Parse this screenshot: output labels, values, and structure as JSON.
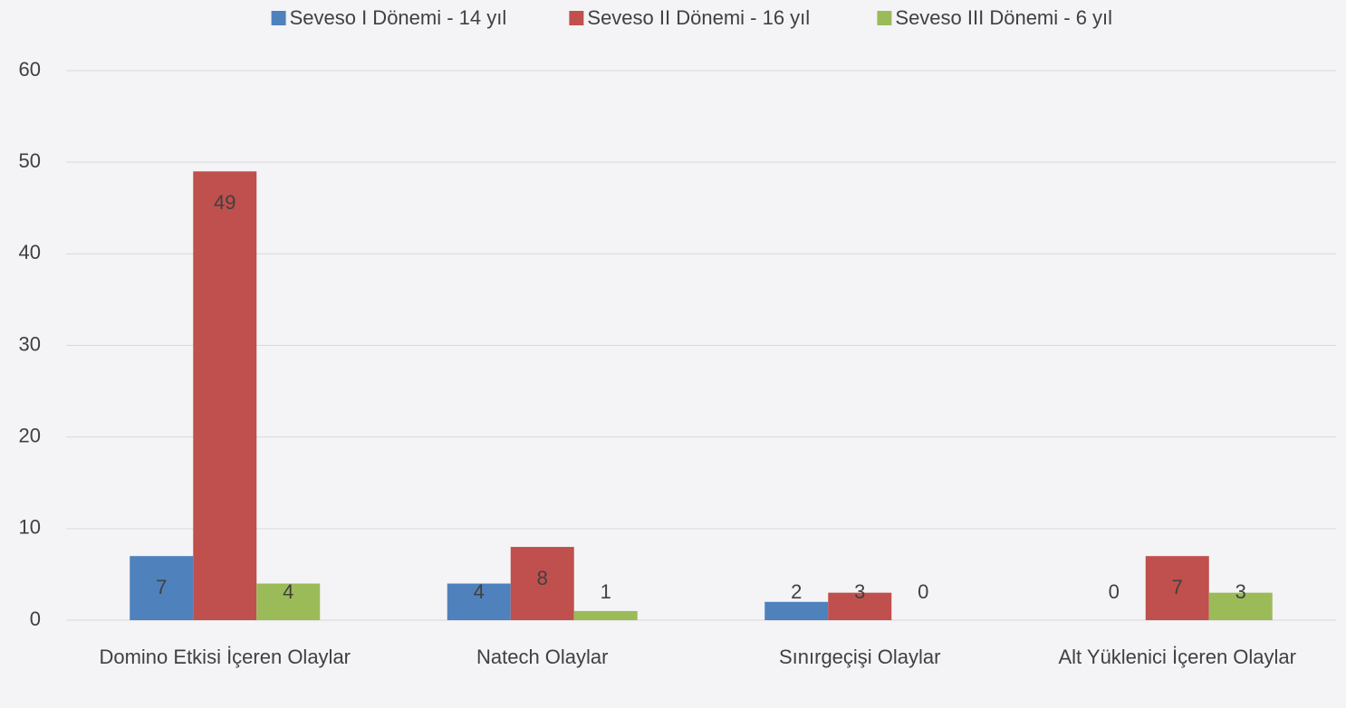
{
  "chart_data": {
    "type": "bar",
    "categories": [
      "Domino Etkisi İçeren Olaylar",
      "Natech Olaylar",
      "Sınırgeçişi Olaylar",
      "Alt Yüklenici İçeren Olaylar"
    ],
    "series": [
      {
        "name": "Seveso I Dönemi - 14 yıl",
        "color": "#4f81bd",
        "values": [
          7,
          4,
          2,
          0
        ]
      },
      {
        "name": "Seveso II Dönemi - 16 yıl",
        "color": "#c0504d",
        "values": [
          49,
          8,
          3,
          7
        ]
      },
      {
        "name": "Seveso III Dönemi - 6 yıl",
        "color": "#9bbb59",
        "values": [
          4,
          1,
          0,
          3
        ]
      }
    ],
    "ylim": [
      0,
      60
    ],
    "yticks": [
      0,
      10,
      20,
      30,
      40,
      50,
      60
    ],
    "grid": true,
    "legend": "top"
  }
}
